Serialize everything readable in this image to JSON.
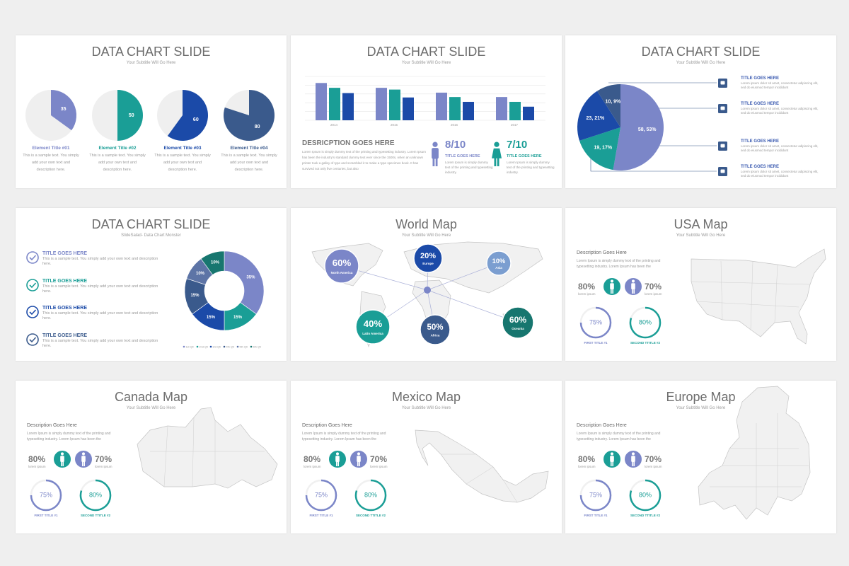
{
  "slides": [
    {
      "title": "DATA CHART SLIDE",
      "subtitle": "Your Subtitle Will Go Here",
      "pies": [
        {
          "value": 35,
          "color": "#7b86c8",
          "title": "Element Title #01",
          "text": "This is a sample text. You simply add your own text and description here."
        },
        {
          "value": 50,
          "color": "#1a9e96",
          "title": "Element Title #02",
          "text": "This is a sample text. You simply add your own text and description here."
        },
        {
          "value": 60,
          "color": "#1b4aa8",
          "title": "Element Title #03",
          "text": "This is a sample text. You simply add your own text and description here."
        },
        {
          "value": 80,
          "color": "#3a5a8c",
          "title": "Element Title #04",
          "text": "This is a sample text. You simply add your own text and description here."
        }
      ]
    },
    {
      "title": "DATA CHART SLIDE",
      "subtitle": "Your Subtitle Will Go Here",
      "chart": {
        "type": "bar",
        "categories": [
          "2014",
          "2015",
          "2016",
          "2017"
        ],
        "series": [
          {
            "color": "#7b86c8",
            "values": [
              85,
              74,
              63,
              53
            ]
          },
          {
            "color": "#1a9e96",
            "values": [
              74,
              70,
              53,
              42
            ]
          },
          {
            "color": "#1b4aa8",
            "values": [
              62,
              52,
              42,
              31
            ]
          }
        ],
        "ylim": [
          0,
          100
        ],
        "yticks": [
          0,
          20,
          40,
          60,
          80,
          100
        ],
        "grid": true
      },
      "description": {
        "heading": "DESRICPTION GOES HERE",
        "text": "Lorem Ipsum is simply dummy text of the printing and typesetting industry. Lorem Ipsum has been the industry's standard dummy text ever since the 1500s, when an unknown printer took a galley of type and scrambled it to make a type specimen book. It has survived not only five centuries, but also"
      },
      "scores": [
        {
          "value": "8/10",
          "title": "TITLE GOES HERE",
          "text": "Lorem Ipsum is simply dummy text of the printing and typesetting industry."
        },
        {
          "value": "7/10",
          "title": "TITLE GOES HERE",
          "text": "Lorem Ipsum is simply dummy text of the printing and typesetting industry."
        }
      ]
    },
    {
      "title": "DATA CHART SLIDE",
      "subtitle": "Your Subtitle Will Go Here",
      "pie": {
        "type": "pie",
        "values": [
          58,
          19,
          23,
          10
        ],
        "value_labels": [
          "58, 53%",
          "19, 17%",
          "23, 21%",
          "10, 9%"
        ],
        "colors": [
          "#7b86c8",
          "#1a9e96",
          "#1b4aa8",
          "#3a5a8c"
        ]
      },
      "items": [
        {
          "title": "TITLE GOES HERE",
          "text": "Lorem ipsum dolor sit amet, consectetur adipiscing elit, sed do eiusmod tempor incididunt"
        },
        {
          "title": "TITLE GOES HERE",
          "text": "Lorem ipsum dolor sit amet, consectetur adipiscing elit, sed do eiusmod tempor incididunt"
        },
        {
          "title": "TITLE GOES HERE",
          "text": "Lorem ipsum dolor sit amet, consectetur adipiscing elit, sed do eiusmod tempor incididunt"
        },
        {
          "title": "TITLE GOES HERE",
          "text": "Lorem ipsum dolor sit amet, consectetur adipiscing elit, sed do eiusmod tempor incididunt"
        }
      ]
    },
    {
      "title": "DATA CHART SLIDE",
      "subtitle": "SlideSalad- Data Chart Monster",
      "list": [
        {
          "title": "TITLE GOES HERE",
          "text": "This is a sample text. You simply add your own text and description here."
        },
        {
          "title": "TITLE GOES HERE",
          "text": "This is a sample text. You simply add your own text and description here."
        },
        {
          "title": "TITLE GOES HERE",
          "text": "This is a sample text. You simply add your own text and description here."
        },
        {
          "title": "TITLE GOES HERE",
          "text": "This is a sample text. You simply add your own text and description here."
        }
      ],
      "donut": {
        "type": "donut",
        "categories": [
          "1st Qtr",
          "2nd Qtr",
          "3rd Qtr",
          "4th Qtr",
          "5th Qtr",
          "6th Qtr"
        ],
        "values": [
          35,
          15,
          15,
          15,
          10,
          10
        ],
        "value_labels": [
          "35%",
          "15%",
          "15%",
          "15%",
          "10%",
          "10%"
        ],
        "colors": [
          "#7b86c8",
          "#1a9e96",
          "#1b4aa8",
          "#3a5a8c",
          "#5d74a6",
          "#17766f"
        ]
      }
    },
    {
      "title": "World Map",
      "subtitle": "Your Subtitle Will Go Here",
      "bubbles": [
        {
          "value": 60,
          "label": "60%",
          "region": "North America",
          "color": "#7b86c8"
        },
        {
          "value": 20,
          "label": "20%",
          "region": "Europe",
          "color": "#1b4aa8"
        },
        {
          "value": 10,
          "label": "10%",
          "region": "Asia",
          "color": "#7b9ed0"
        },
        {
          "value": 40,
          "label": "40%",
          "region": "Latin America",
          "color": "#1a9e96"
        },
        {
          "value": 50,
          "label": "50%",
          "region": "Africa",
          "color": "#3a5a8c"
        },
        {
          "value": 60,
          "label": "60%",
          "region": "Oceania",
          "color": "#17766f"
        }
      ]
    },
    {
      "title": "USA Map",
      "subtitle": "Your Subtitle Will Go Here",
      "description": {
        "heading": "Description Goes Here",
        "text": "Lorem Ipsum is simply dummy text of the printing and typesetting industry. Lorem Ipsum has been the"
      },
      "stats": [
        {
          "value": 80,
          "label": "80%",
          "caption": "lorem ipsum"
        },
        {
          "value": 70,
          "label": "70%",
          "caption": "lorem ipsum"
        }
      ],
      "rings": [
        {
          "value": 75,
          "label": "75%",
          "title": "FIRST TITLE #1",
          "color": "#7b86c8"
        },
        {
          "value": 80,
          "label": "80%",
          "title": "SECOND TTITLE #2",
          "color": "#1a9e96"
        }
      ]
    },
    {
      "title": "Canada Map",
      "subtitle": "Your Subtitle Will Go Here",
      "description": {
        "heading": "Description Goes Here",
        "text": "Lorem Ipsum is simply dummy text of the printing and typesetting industry. Lorem Ipsum has been the"
      },
      "stats": [
        {
          "value": 80,
          "label": "80%",
          "caption": "lorem ipsum"
        },
        {
          "value": 70,
          "label": "70%",
          "caption": "lorem ipsum"
        }
      ],
      "rings": [
        {
          "value": 75,
          "label": "75%",
          "title": "FIRST TITLE #1",
          "color": "#7b86c8"
        },
        {
          "value": 80,
          "label": "80%",
          "title": "SECOND TTITLE #2",
          "color": "#1a9e96"
        }
      ]
    },
    {
      "title": "Mexico Map",
      "subtitle": "Your Subtitle Will Go Here",
      "description": {
        "heading": "Description Goes Here",
        "text": "Lorem Ipsum is simply dummy text of the printing and typesetting industry. Lorem Ipsum has been the"
      },
      "stats": [
        {
          "value": 80,
          "label": "80%",
          "caption": "lorem ipsum"
        },
        {
          "value": 70,
          "label": "70%",
          "caption": "lorem ipsum"
        }
      ],
      "rings": [
        {
          "value": 75,
          "label": "75%",
          "title": "FIRST TITLE #1",
          "color": "#7b86c8"
        },
        {
          "value": 80,
          "label": "80%",
          "title": "SECOND TTITLE #2",
          "color": "#1a9e96"
        }
      ]
    },
    {
      "title": "Europe Map",
      "subtitle": "Your Subtitle Will Go Here",
      "description": {
        "heading": "Description Goes Here",
        "text": "Lorem Ipsum is simply dummy text of the printing and typesetting industry. Lorem Ipsum has been the"
      },
      "stats": [
        {
          "value": 80,
          "label": "80%",
          "caption": "lorem ipsum"
        },
        {
          "value": 70,
          "label": "70%",
          "caption": "lorem ipsum"
        }
      ],
      "rings": [
        {
          "value": 75,
          "label": "75%",
          "title": "FIRST TITLE #1",
          "color": "#7b86c8"
        },
        {
          "value": 80,
          "label": "80%",
          "title": "SECOND TTITLE #2",
          "color": "#1a9e96"
        }
      ]
    }
  ]
}
